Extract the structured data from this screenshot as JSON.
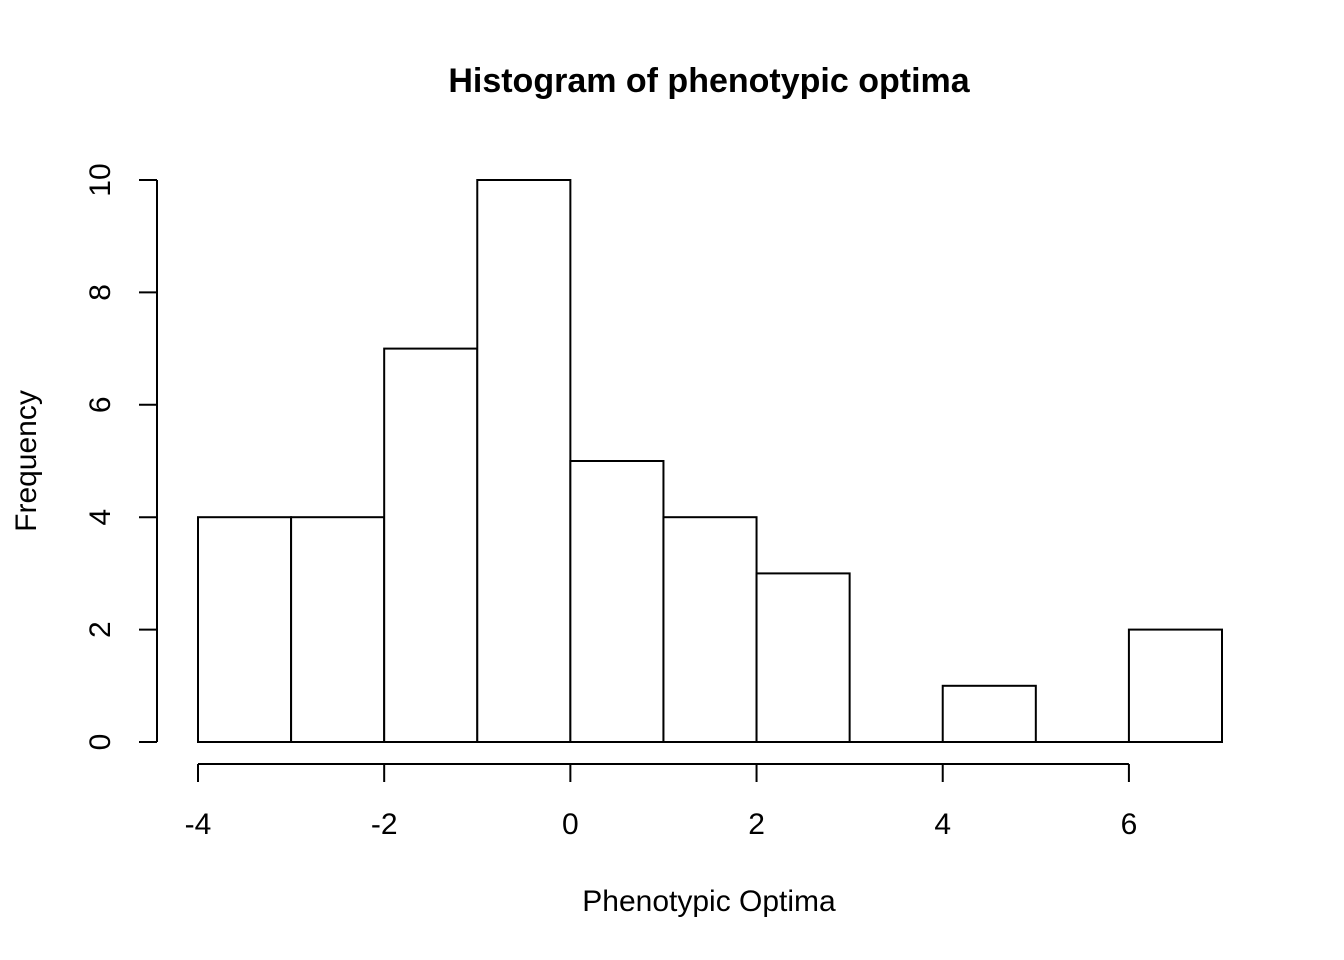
{
  "chart_data": {
    "type": "bar",
    "title": "Histogram of phenotypic optima",
    "xlabel": "Phenotypic Optima",
    "ylabel": "Frequency",
    "bins": [
      {
        "x0": -4,
        "x1": -3,
        "count": 4
      },
      {
        "x0": -3,
        "x1": -2,
        "count": 4
      },
      {
        "x0": -2,
        "x1": -1,
        "count": 7
      },
      {
        "x0": -1,
        "x1": 0,
        "count": 10
      },
      {
        "x0": 0,
        "x1": 1,
        "count": 5
      },
      {
        "x0": 1,
        "x1": 2,
        "count": 4
      },
      {
        "x0": 2,
        "x1": 3,
        "count": 3
      },
      {
        "x0": 3,
        "x1": 4,
        "count": 0
      },
      {
        "x0": 4,
        "x1": 5,
        "count": 1
      },
      {
        "x0": 5,
        "x1": 6,
        "count": 0
      },
      {
        "x0": 6,
        "x1": 7,
        "count": 2
      }
    ],
    "xticks": [
      -4,
      -2,
      0,
      2,
      4,
      6
    ],
    "xtick_labels": [
      "-4",
      "-2",
      "0",
      "2",
      "4",
      "6"
    ],
    "yticks": [
      0,
      2,
      4,
      6,
      8,
      10
    ],
    "ytick_labels": [
      "0",
      "2",
      "4",
      "6",
      "8",
      "10"
    ],
    "xlim": [
      -4,
      7
    ],
    "ylim": [
      0,
      10
    ],
    "grid": false,
    "bar_fill": "#ffffff",
    "bar_stroke": "#000000"
  }
}
